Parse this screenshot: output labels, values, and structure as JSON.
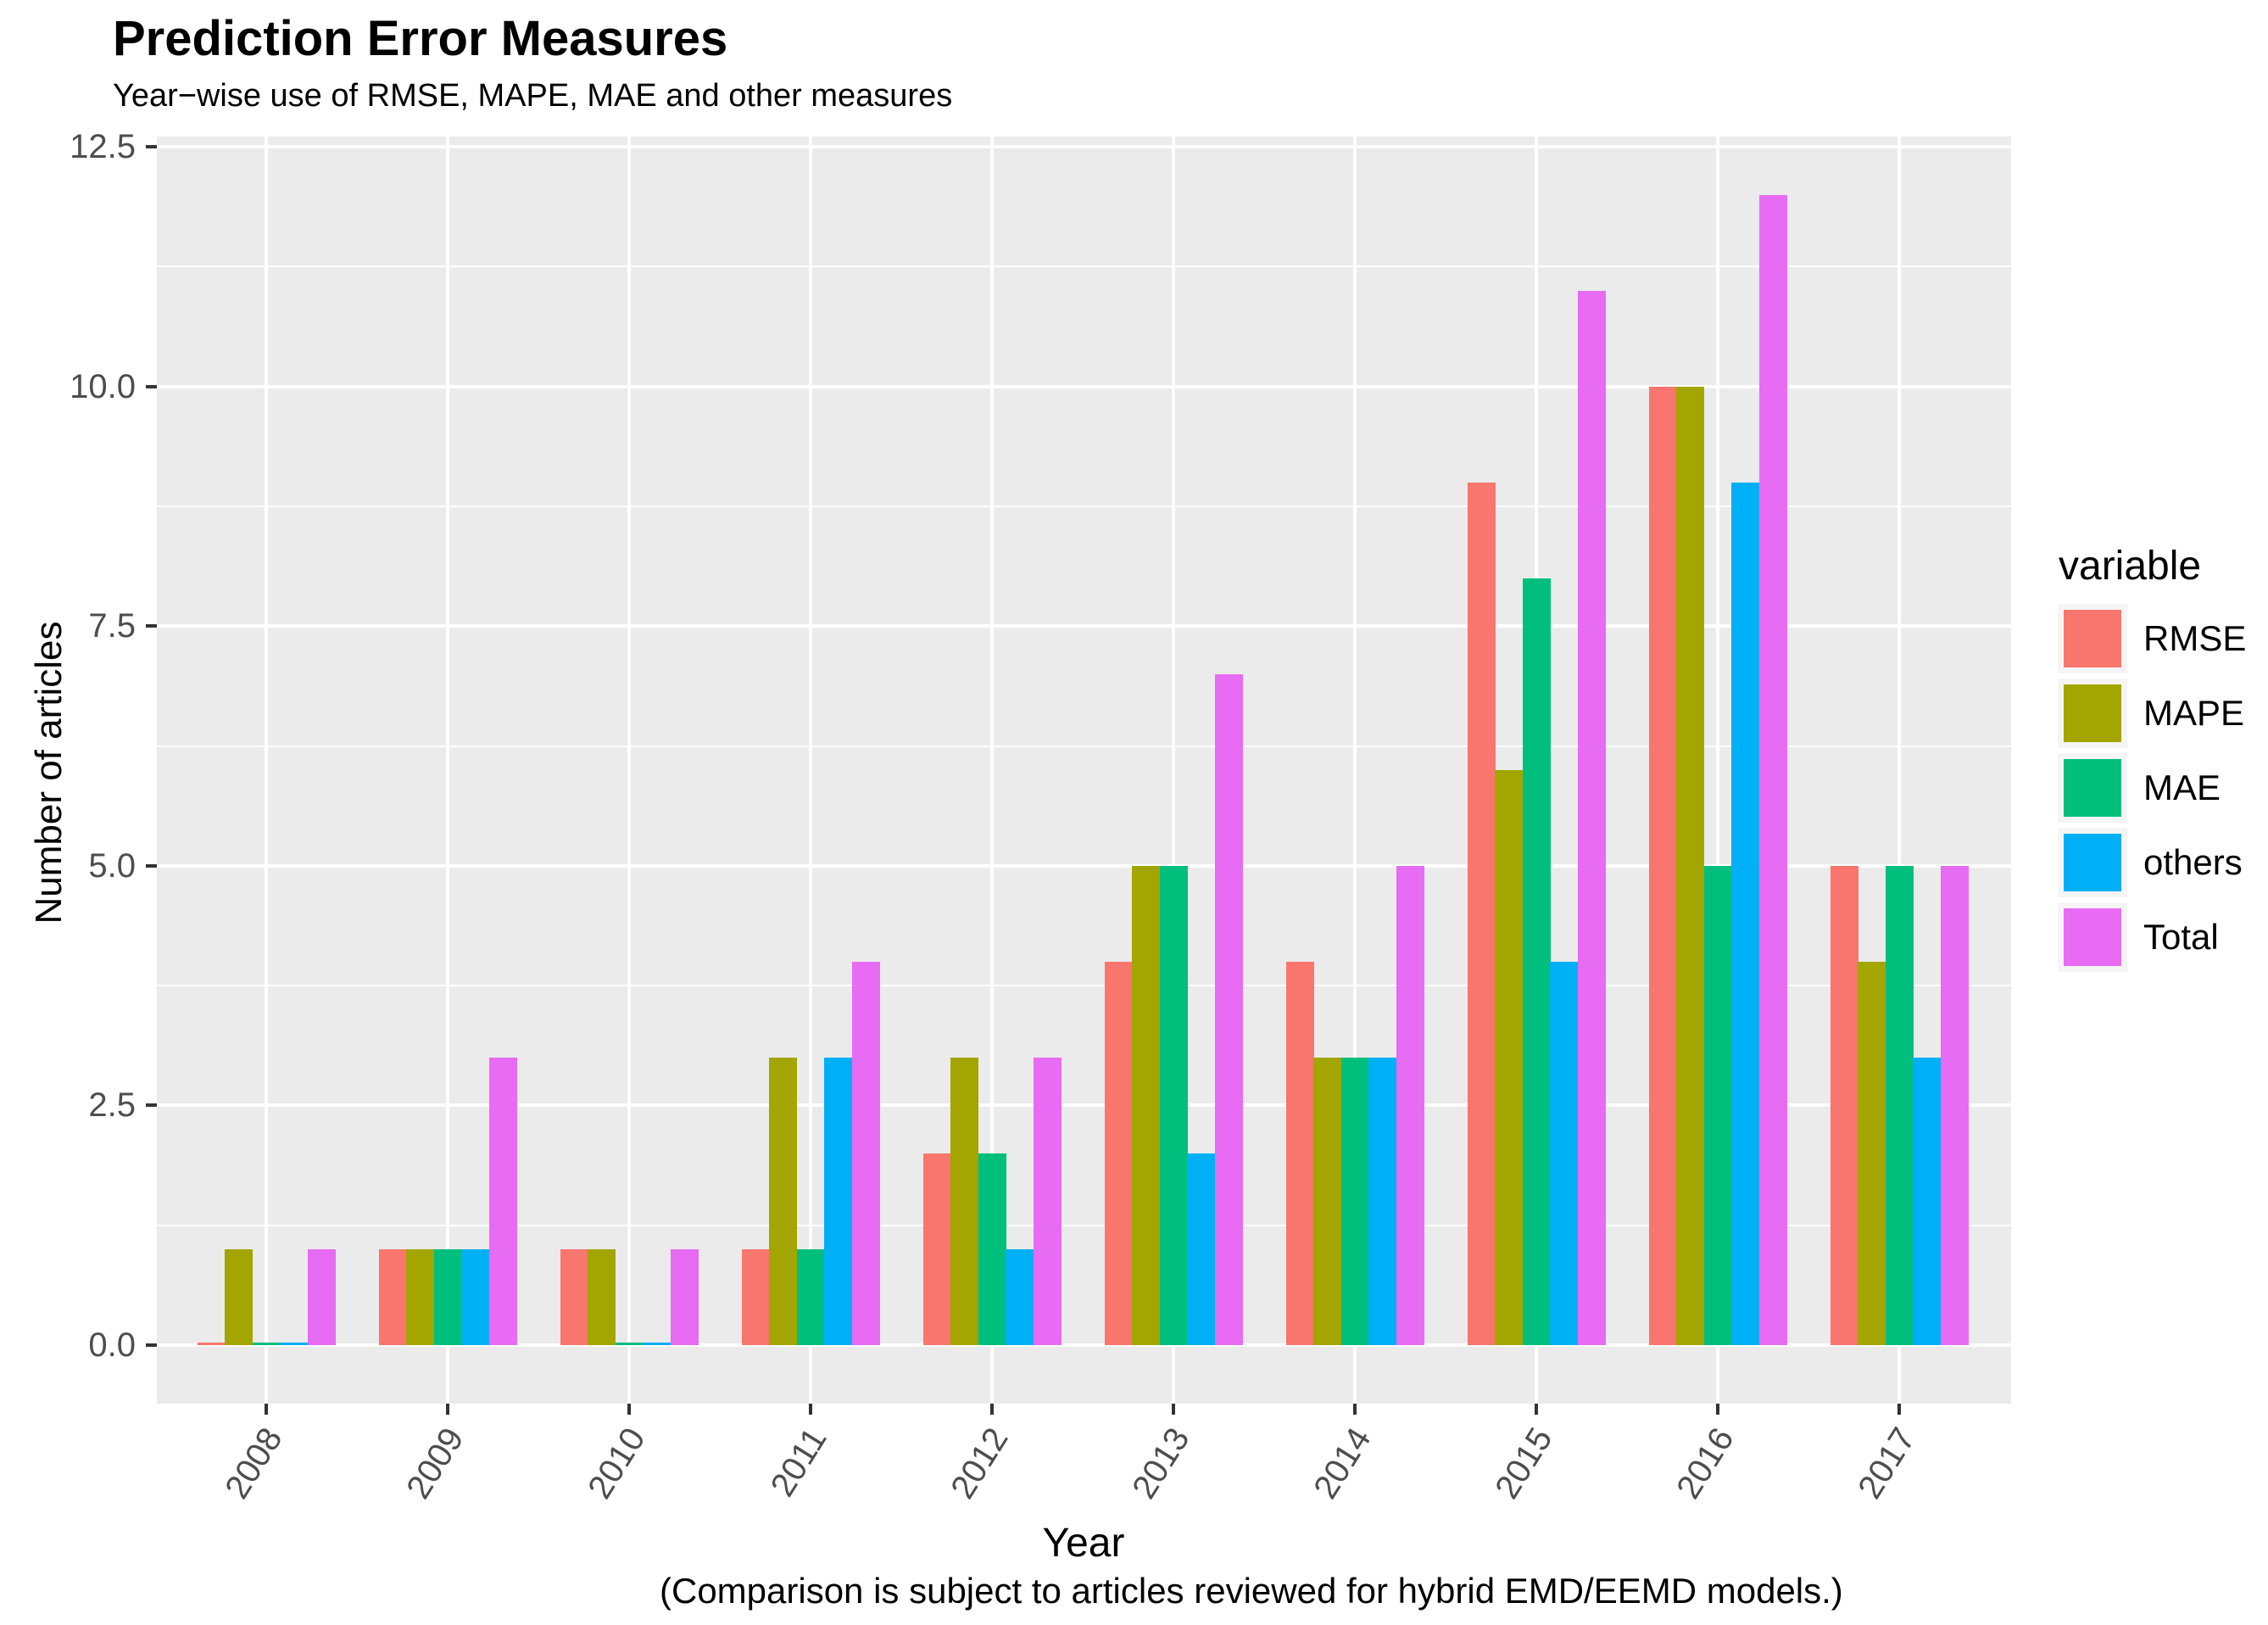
{
  "title": "Prediction Error Measures",
  "subtitle": "Year−wise use of RMSE, MAPE, MAE and other measures",
  "caption": "(Comparison is subject to articles reviewed for hybrid EMD/EEMD models.)",
  "axes": {
    "x_title": "Year",
    "y_title": "Number of articles",
    "y_tick_labels": [
      "0.0",
      "2.5",
      "5.0",
      "7.5",
      "10.0",
      "12.5"
    ]
  },
  "legend": {
    "title": "variable",
    "entries": [
      "RMSE",
      "MAPE",
      "MAE",
      "others",
      "Total"
    ]
  },
  "colors": {
    "panel_background": "#EBEBEB",
    "gridline": "#FFFFFF",
    "tick_mark": "#333333",
    "tick_label": "#4D4D4D",
    "legend_key_background": "#F5F5F5"
  },
  "chart_data": {
    "type": "bar",
    "title": "Prediction Error Measures",
    "subtitle": "Year−wise use of RMSE, MAPE, MAE and other measures",
    "xlabel": "Year",
    "ylabel": "Number of articles",
    "categories": [
      "2008",
      "2009",
      "2010",
      "2011",
      "2012",
      "2013",
      "2014",
      "2015",
      "2016",
      "2017"
    ],
    "series": [
      {
        "name": "RMSE",
        "color": "#F8766D",
        "values": [
          0,
          1,
          1,
          1,
          2,
          4,
          4,
          9,
          10,
          5
        ]
      },
      {
        "name": "MAPE",
        "color": "#A3A500",
        "values": [
          1,
          1,
          1,
          3,
          3,
          5,
          3,
          6,
          10,
          4
        ]
      },
      {
        "name": "MAE",
        "color": "#00BF7D",
        "values": [
          0,
          1,
          0,
          1,
          2,
          5,
          3,
          8,
          5,
          5
        ]
      },
      {
        "name": "others",
        "color": "#00B0F6",
        "values": [
          0,
          1,
          0,
          3,
          1,
          2,
          3,
          4,
          9,
          3
        ]
      },
      {
        "name": "Total",
        "color": "#E76BF3",
        "values": [
          1,
          3,
          1,
          4,
          3,
          7,
          5,
          11,
          12,
          5
        ]
      }
    ],
    "ylim": [
      0,
      12.5
    ],
    "y_major_ticks": [
      0,
      2.5,
      5,
      7.5,
      10,
      12.5
    ],
    "y_minor_ticks": [
      1.25,
      3.75,
      6.25,
      8.75,
      11.25
    ],
    "grid": true,
    "legend_position": "right",
    "bar_grouping": "dodge"
  }
}
